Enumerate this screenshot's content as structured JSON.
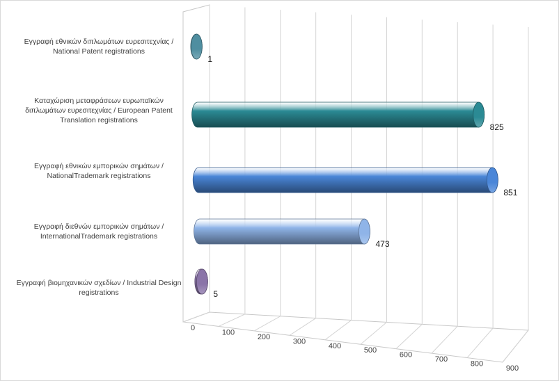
{
  "chart_data": {
    "type": "bar",
    "orientation": "horizontal",
    "style": "3d-cylinder",
    "categories": [
      "Εγγραφή εθνικών  διπλωμάτων ευρεσιτεχνίας / National Patent registrations",
      "Καταχώριση μεταφράσεων ευρωπαϊκών διπλωμάτων ευρεσιτεχνίας / European Patent Translation registrations",
      "Εγγραφή εθνικών  εμπορικών σημάτων / NationalTrademark registrations",
      "Εγγραφή διεθνών  εμπορικών σημάτων / InternationalTrademark registrations",
      "Εγγραφή βιομηχανικών σχεδίων / Industrial Design registrations"
    ],
    "values": [
      1,
      825,
      851,
      473,
      5
    ],
    "data_labels": [
      "1",
      "825",
      "851",
      "473",
      "5"
    ],
    "x_ticks": [
      "0",
      "100",
      "200",
      "300",
      "400",
      "500",
      "600",
      "700",
      "800",
      "900"
    ],
    "xlim": [
      0,
      900
    ],
    "grid": true,
    "colors": [
      "#4f8ea0",
      "#2b8a94",
      "#4a86d8",
      "#8fb4e8",
      "#8a74a8"
    ],
    "legend": "none"
  }
}
